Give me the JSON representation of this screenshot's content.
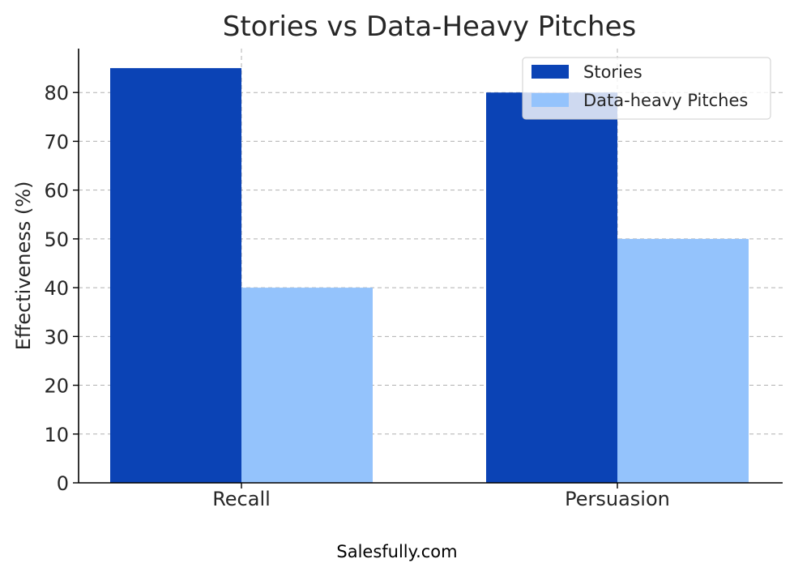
{
  "chart_data": {
    "type": "bar",
    "title": "Stories vs Data-Heavy Pitches",
    "xlabel": "",
    "ylabel": "Effectiveness (%)",
    "categories": [
      "Recall",
      "Persuasion"
    ],
    "series": [
      {
        "name": "Stories",
        "values": [
          85,
          80
        ],
        "color": "#0b43b5"
      },
      {
        "name": "Data-heavy Pitches",
        "values": [
          40,
          50
        ],
        "color": "#94c3fc"
      }
    ],
    "ylim": [
      0,
      89
    ],
    "yticks": [
      0,
      10,
      20,
      30,
      40,
      50,
      60,
      70,
      80
    ],
    "grid": true,
    "legend_position": "top-right"
  },
  "footer": {
    "text": "Salesfully.com"
  }
}
